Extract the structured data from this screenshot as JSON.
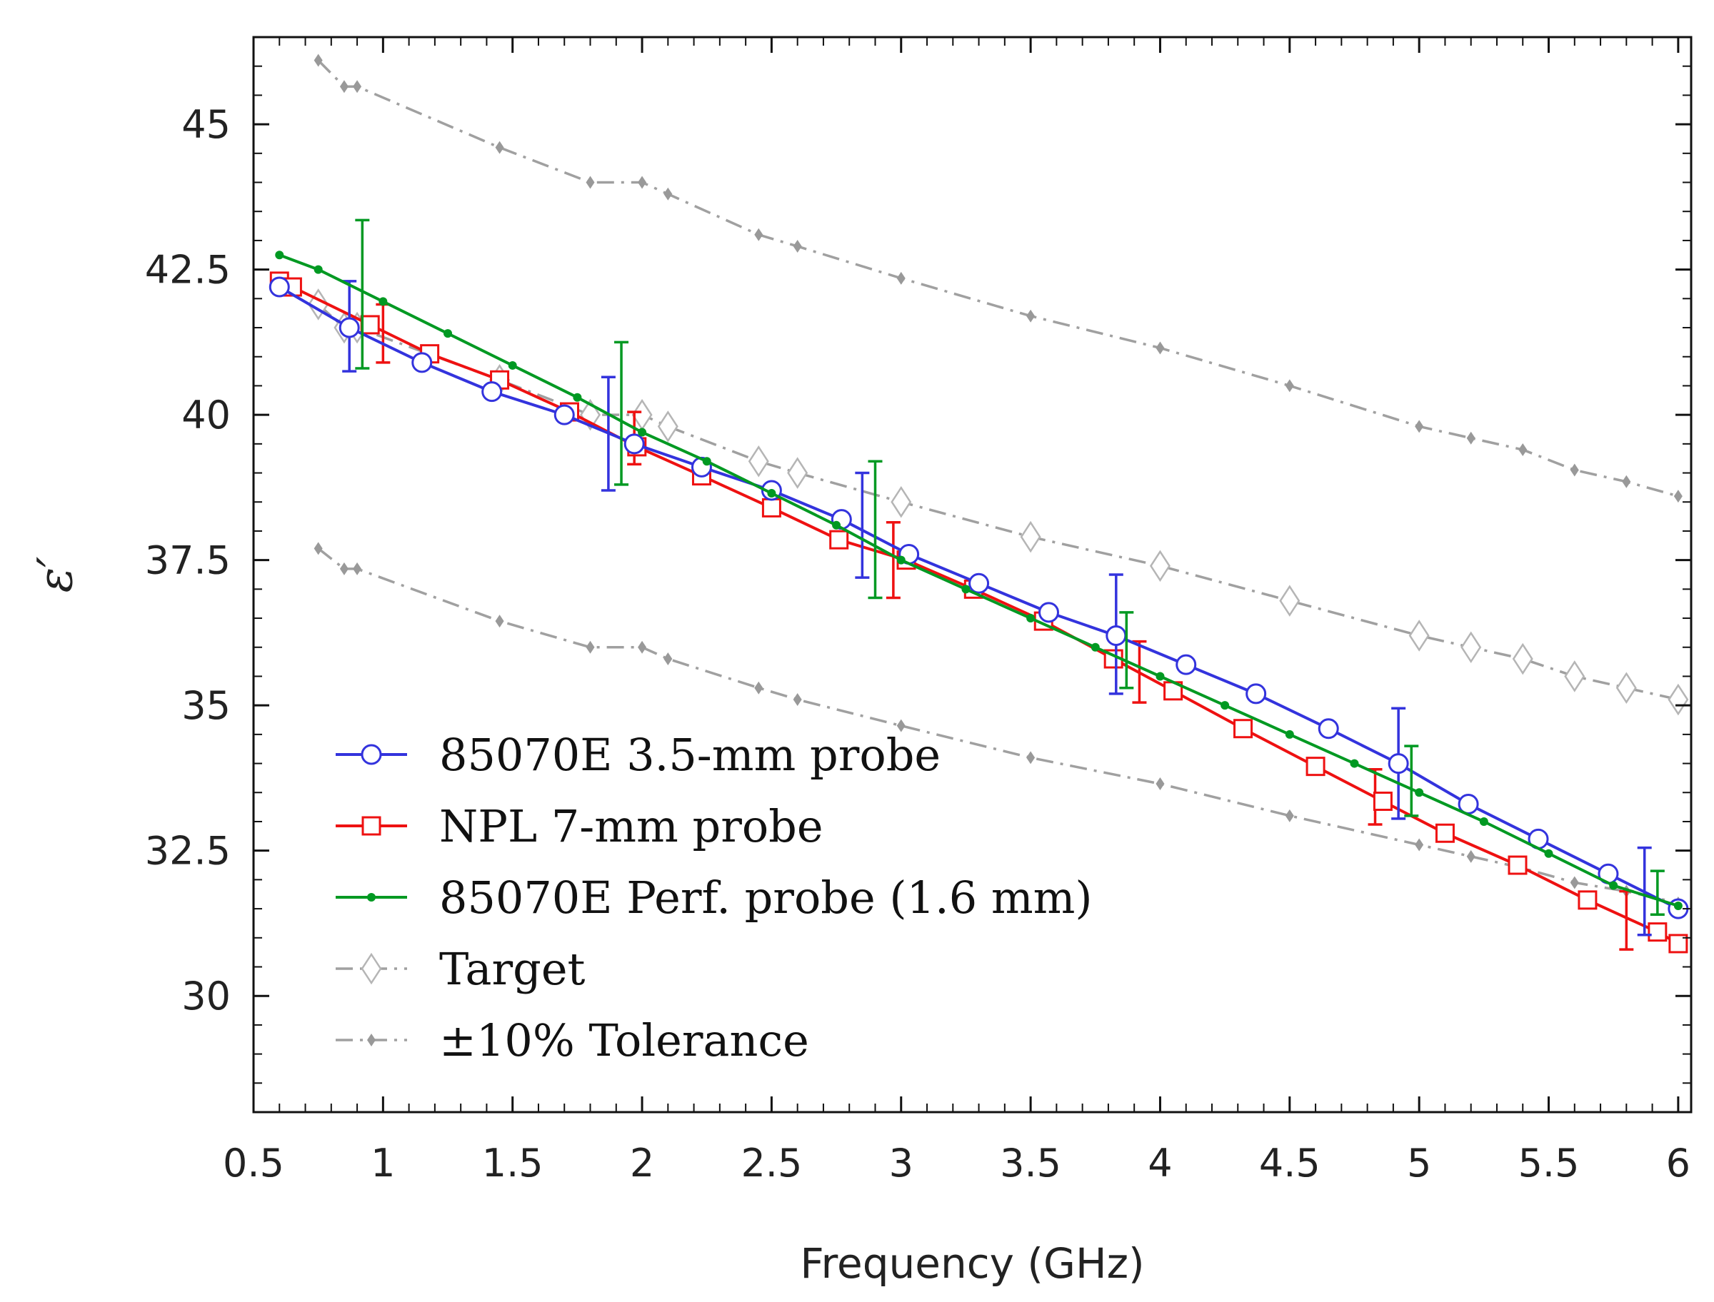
{
  "chart_data": {
    "type": "line",
    "title": "",
    "xlabel": "Frequency (GHz)",
    "ylabel": "ε′",
    "xlim": [
      0.5,
      6.05
    ],
    "ylim": [
      28,
      46.5
    ],
    "xticks": [
      0.5,
      1,
      1.5,
      2,
      2.5,
      3,
      3.5,
      4,
      4.5,
      5,
      5.5,
      6
    ],
    "xtick_labels": [
      "0.5",
      "1",
      "1.5",
      "2",
      "2.5",
      "3",
      "3.5",
      "4",
      "4.5",
      "5",
      "5.5",
      "6"
    ],
    "yticks": [
      30,
      32.5,
      35,
      37.5,
      40,
      42.5,
      45
    ],
    "ytick_labels": [
      "30",
      "32.5",
      "35",
      "37.5",
      "40",
      "42.5",
      "45"
    ],
    "grid": false,
    "legend_position": "bottom-left",
    "series": [
      {
        "name": "85070E 3.5-mm probe",
        "color": "#3333dd",
        "marker": "circle",
        "line": "solid",
        "x": [
          0.6,
          0.87,
          1.15,
          1.42,
          1.7,
          1.97,
          2.23,
          2.5,
          2.77,
          3.03,
          3.3,
          3.57,
          3.83,
          4.1,
          4.37,
          4.65,
          4.92,
          5.19,
          5.46,
          5.73,
          6.0
        ],
        "y": [
          42.2,
          41.5,
          40.9,
          40.4,
          40.0,
          39.5,
          39.1,
          38.7,
          38.2,
          37.6,
          37.1,
          36.6,
          36.2,
          35.7,
          35.2,
          34.6,
          34.0,
          33.3,
          32.7,
          32.1,
          31.5
        ],
        "error_bars": [
          {
            "x": 0.87,
            "y": 41.5,
            "low": 40.75,
            "high": 42.3
          },
          {
            "x": 1.87,
            "y": 39.7,
            "low": 38.7,
            "high": 40.65
          },
          {
            "x": 2.85,
            "y": 38.1,
            "low": 37.2,
            "high": 39.0
          },
          {
            "x": 3.83,
            "y": 36.2,
            "low": 35.2,
            "high": 37.25
          },
          {
            "x": 4.92,
            "y": 34.0,
            "low": 33.05,
            "high": 34.95
          },
          {
            "x": 5.87,
            "y": 31.8,
            "low": 31.05,
            "high": 32.55
          }
        ]
      },
      {
        "name": "NPL 7-mm probe",
        "color": "#ee1111",
        "marker": "square",
        "line": "solid",
        "x": [
          0.6,
          0.65,
          0.95,
          1.18,
          1.45,
          1.72,
          1.98,
          2.23,
          2.5,
          2.76,
          3.02,
          3.28,
          3.55,
          3.82,
          4.05,
          4.32,
          4.6,
          4.86,
          5.1,
          5.38,
          5.65,
          5.92,
          6.0
        ],
        "y": [
          42.3,
          42.2,
          41.55,
          41.05,
          40.6,
          40.05,
          39.45,
          38.95,
          38.4,
          37.85,
          37.5,
          37.0,
          36.45,
          35.8,
          35.25,
          34.6,
          33.95,
          33.35,
          32.8,
          32.25,
          31.65,
          31.1,
          30.9
        ],
        "error_bars": [
          {
            "x": 1.0,
            "y": 41.4,
            "low": 40.9,
            "high": 41.9
          },
          {
            "x": 1.97,
            "y": 39.6,
            "low": 39.15,
            "high": 40.05
          },
          {
            "x": 2.97,
            "y": 37.5,
            "low": 36.85,
            "high": 38.15
          },
          {
            "x": 3.92,
            "y": 35.55,
            "low": 35.05,
            "high": 36.1
          },
          {
            "x": 4.83,
            "y": 33.4,
            "low": 32.95,
            "high": 33.9
          },
          {
            "x": 5.8,
            "y": 31.3,
            "low": 30.8,
            "high": 31.8
          }
        ]
      },
      {
        "name": "85070E Perf. probe (1.6 mm)",
        "color": "#009922",
        "marker": "dot",
        "line": "solid",
        "x": [
          0.6,
          0.75,
          1.0,
          1.25,
          1.5,
          1.75,
          2.0,
          2.25,
          2.5,
          2.75,
          3.0,
          3.25,
          3.5,
          3.75,
          4.0,
          4.25,
          4.5,
          4.75,
          5.0,
          5.25,
          5.5,
          5.75,
          6.0
        ],
        "y": [
          42.75,
          42.5,
          41.95,
          41.4,
          40.85,
          40.3,
          39.7,
          39.2,
          38.65,
          38.1,
          37.5,
          37.0,
          36.5,
          36.0,
          35.5,
          35.0,
          34.5,
          34.0,
          33.5,
          33.0,
          32.45,
          31.9,
          31.55
        ],
        "error_bars": [
          {
            "x": 0.92,
            "y": 42.05,
            "low": 40.8,
            "high": 43.35
          },
          {
            "x": 1.92,
            "y": 40.0,
            "low": 38.8,
            "high": 41.25
          },
          {
            "x": 2.9,
            "y": 38.05,
            "low": 36.85,
            "high": 39.2
          },
          {
            "x": 3.87,
            "y": 35.85,
            "low": 35.3,
            "high": 36.6
          },
          {
            "x": 4.97,
            "y": 33.55,
            "low": 33.1,
            "high": 34.3
          },
          {
            "x": 5.92,
            "y": 31.75,
            "low": 31.4,
            "high": 32.15
          }
        ]
      },
      {
        "name": "Target",
        "color": "#a0a0a0",
        "marker": "diamond",
        "line": "dashdot",
        "x": [
          0.75,
          0.85,
          0.9,
          1.45,
          1.8,
          2.0,
          2.1,
          2.45,
          2.6,
          3.0,
          3.5,
          4.0,
          4.5,
          5.0,
          5.2,
          5.4,
          5.6,
          5.8,
          6.0
        ],
        "y": [
          41.9,
          41.5,
          41.5,
          40.6,
          40.0,
          40.0,
          39.8,
          39.2,
          39.0,
          38.5,
          37.9,
          37.4,
          36.8,
          36.2,
          36.0,
          35.8,
          35.5,
          35.3,
          35.1
        ]
      },
      {
        "name": "±10% Tolerance",
        "color": "#a0a0a0",
        "marker": "small-diamond",
        "line": "dashdot",
        "upper": {
          "x": [
            0.75,
            0.85,
            0.9,
            1.45,
            1.8,
            2.0,
            2.1,
            2.45,
            2.6,
            3.0,
            3.5,
            4.0,
            4.5,
            5.0,
            5.2,
            5.4,
            5.6,
            5.8,
            6.0
          ],
          "y": [
            46.1,
            45.65,
            45.65,
            44.6,
            44.0,
            44.0,
            43.8,
            43.1,
            42.9,
            42.35,
            41.7,
            41.15,
            40.5,
            39.8,
            39.6,
            39.4,
            39.05,
            38.85,
            38.6
          ]
        },
        "lower": {
          "x": [
            0.75,
            0.85,
            0.9,
            1.45,
            1.8,
            2.0,
            2.1,
            2.45,
            2.6,
            3.0,
            3.5,
            4.0,
            4.5,
            5.0,
            5.2,
            5.4,
            5.6,
            5.8,
            6.0
          ],
          "y": [
            37.7,
            37.35,
            37.35,
            36.45,
            36.0,
            36.0,
            35.8,
            35.3,
            35.1,
            34.65,
            34.1,
            33.65,
            33.1,
            32.6,
            32.4,
            32.2,
            31.95,
            31.8,
            31.6
          ]
        }
      }
    ]
  }
}
